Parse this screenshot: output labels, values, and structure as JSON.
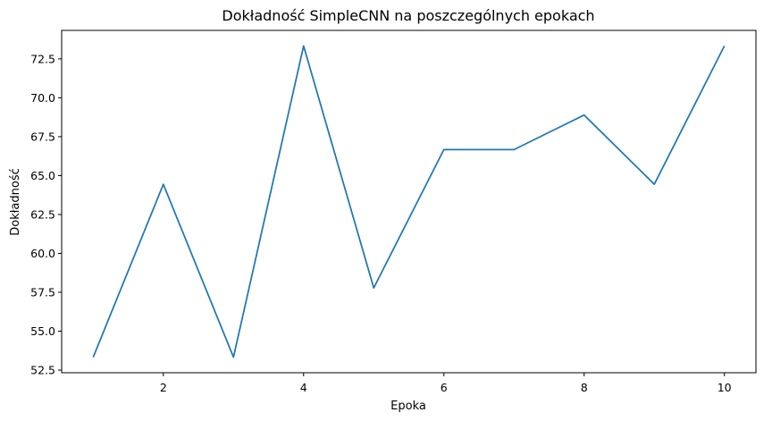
{
  "chart_data": {
    "type": "line",
    "title": "Dokładność SimpleCNN na poszczególnych epokach",
    "xlabel": "Epoka",
    "ylabel": "Dokładność",
    "x": [
      1,
      2,
      3,
      4,
      5,
      6,
      7,
      8,
      9,
      10
    ],
    "series": [
      {
        "values": [
          53.33,
          64.44,
          53.33,
          73.33,
          57.78,
          66.67,
          66.67,
          68.89,
          64.44,
          73.33
        ],
        "color": "#1f77b4"
      }
    ],
    "xlim": [
      0.55,
      10.45
    ],
    "ylim": [
      52.33,
      74.33
    ],
    "xticks": [
      2,
      4,
      6,
      8,
      10
    ],
    "xtick_labels": [
      "2",
      "4",
      "6",
      "8",
      "10"
    ],
    "yticks": [
      52.5,
      55.0,
      57.5,
      60.0,
      62.5,
      65.0,
      67.5,
      70.0,
      72.5
    ],
    "ytick_labels": [
      "52.5",
      "55.0",
      "57.5",
      "60.0",
      "62.5",
      "65.0",
      "67.5",
      "70.0",
      "72.5"
    ],
    "grid": false,
    "legend": "none"
  }
}
